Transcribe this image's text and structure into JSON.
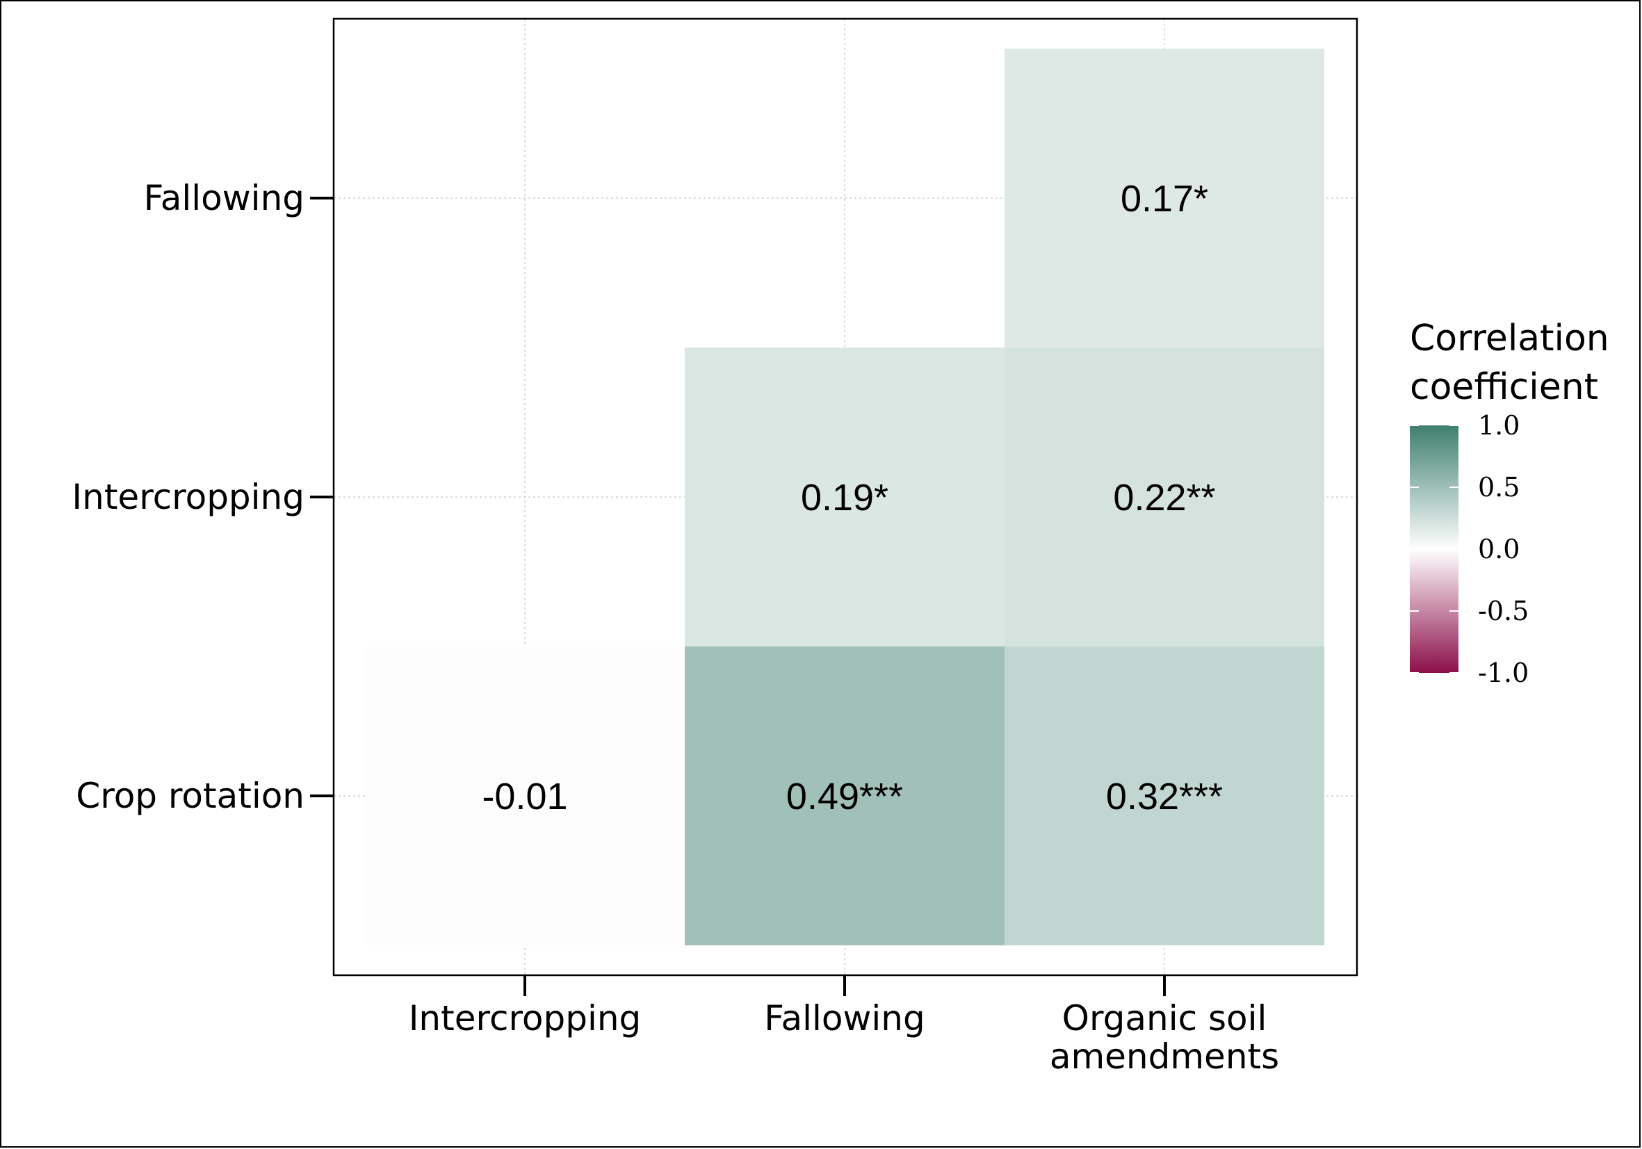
{
  "chart_data": {
    "type": "heatmap",
    "x_categories": [
      "Intercropping",
      "Fallowing",
      "Organic soil amendments"
    ],
    "x_tick_labels": [
      [
        "Intercropping"
      ],
      [
        "Fallowing"
      ],
      [
        "Organic soil",
        "amendments"
      ]
    ],
    "y_categories": [
      "Crop rotation",
      "Intercropping",
      "Fallowing"
    ],
    "cells": [
      {
        "x": "Intercropping",
        "y": "Crop rotation",
        "value": -0.01,
        "label": "-0.01"
      },
      {
        "x": "Fallowing",
        "y": "Crop rotation",
        "value": 0.49,
        "label": "0.49***"
      },
      {
        "x": "Organic soil amendments",
        "y": "Crop rotation",
        "value": 0.32,
        "label": "0.32***"
      },
      {
        "x": "Fallowing",
        "y": "Intercropping",
        "value": 0.19,
        "label": "0.19*"
      },
      {
        "x": "Organic soil amendments",
        "y": "Intercropping",
        "value": 0.22,
        "label": "0.22**"
      },
      {
        "x": "Organic soil amendments",
        "y": "Fallowing",
        "value": 0.17,
        "label": "0.17*"
      }
    ],
    "legend": {
      "title": [
        "Correlation",
        "coefficient"
      ],
      "ticks": [
        1.0,
        0.5,
        0.0,
        -0.5,
        -1.0
      ],
      "tick_labels": [
        "1.0",
        "0.5",
        "0.0",
        "-0.5",
        "-1.0"
      ],
      "range": [
        -1,
        1
      ],
      "placement": "right"
    },
    "colors": {
      "low": "#8b0f4a",
      "mid": "#ffffff",
      "high": "#3f7f6e"
    },
    "grid": true
  }
}
